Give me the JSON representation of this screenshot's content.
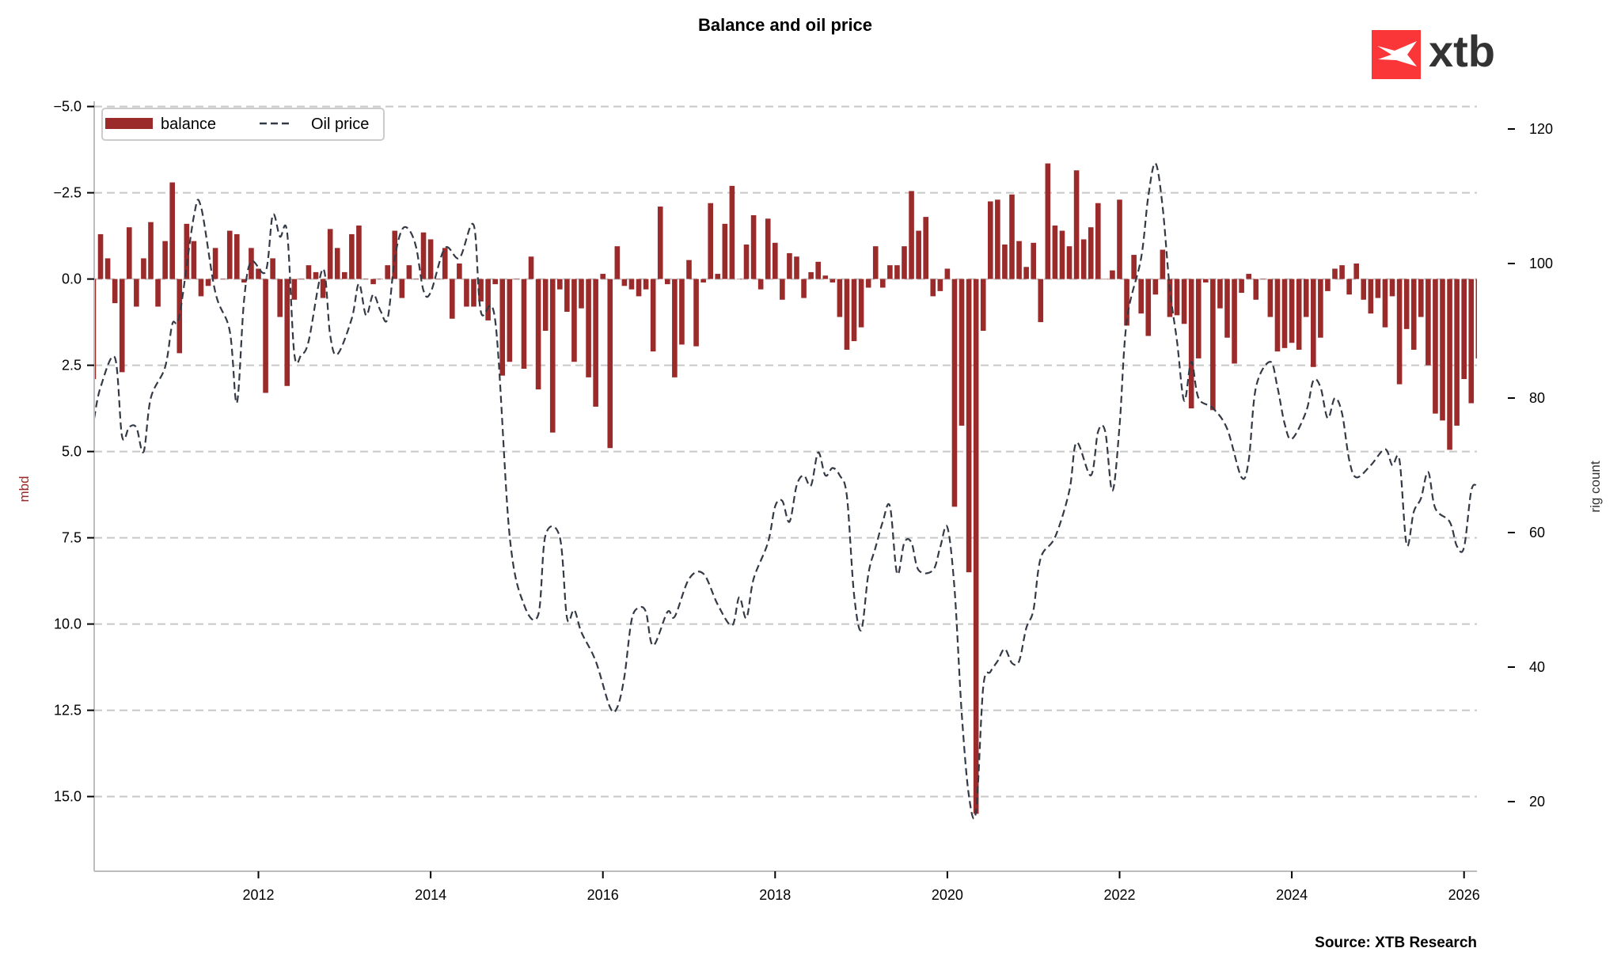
{
  "chart_data": {
    "type": "bar+line",
    "title": "Balance and oil price",
    "source": "Source: XTB Research",
    "logo_text": "xtb",
    "colors": {
      "balance": "#9b2a2a",
      "oil": "#343a45",
      "grid": "#c8c8c8",
      "logo": "#fb3638"
    },
    "left_axis": {
      "label": "mbd",
      "inverted": true,
      "ylim": [
        -5.2,
        17.2
      ],
      "ticks": [
        "-5.0",
        "-2.5",
        "0.0",
        "2.5",
        "5.0",
        "7.5",
        "10.0",
        "12.5",
        "15.0"
      ]
    },
    "right_axis": {
      "label": "rig count",
      "ylim": [
        9.7,
        124
      ],
      "ticks": [
        "20",
        "40",
        "60",
        "80",
        "100",
        "120"
      ]
    },
    "x_ticks": [
      "2012",
      "2014",
      "2016",
      "2018",
      "2020",
      "2022",
      "2024",
      "2026"
    ],
    "grid": "horizontal dashed (left axis)",
    "legend": {
      "placement": "top-left",
      "entries": [
        "balance",
        "Oil price"
      ]
    },
    "balance": {
      "name": "balance",
      "dates": [
        "2010-02",
        "2010-03",
        "2010-04",
        "2010-05",
        "2010-06",
        "2010-07",
        "2010-08",
        "2010-09",
        "2010-10",
        "2010-11",
        "2010-12",
        "2011-01",
        "2011-02",
        "2011-03",
        "2011-04",
        "2011-05",
        "2011-06",
        "2011-07",
        "2011-08",
        "2011-09",
        "2011-10",
        "2011-11",
        "2011-12",
        "2012-01",
        "2012-02",
        "2012-03",
        "2012-04",
        "2012-05",
        "2012-06",
        "2012-07",
        "2012-08",
        "2012-09",
        "2012-10",
        "2012-11",
        "2012-12",
        "2013-01",
        "2013-02",
        "2013-03",
        "2013-04",
        "2013-05",
        "2013-06",
        "2013-07",
        "2013-08",
        "2013-09",
        "2013-10",
        "2013-11",
        "2013-12",
        "2014-01",
        "2014-02",
        "2014-03",
        "2014-04",
        "2014-05",
        "2014-06",
        "2014-07",
        "2014-08",
        "2014-09",
        "2014-10",
        "2014-11",
        "2014-12",
        "2015-01",
        "2015-02",
        "2015-03",
        "2015-04",
        "2015-05",
        "2015-06",
        "2015-07",
        "2015-08",
        "2015-09",
        "2015-10",
        "2015-11",
        "2015-12",
        "2016-01",
        "2016-02",
        "2016-03",
        "2016-04",
        "2016-05",
        "2016-06",
        "2016-07",
        "2016-08",
        "2016-09",
        "2016-10",
        "2016-11",
        "2016-12",
        "2017-01",
        "2017-02",
        "2017-03",
        "2017-04",
        "2017-05",
        "2017-06",
        "2017-07",
        "2017-08",
        "2017-09",
        "2017-10",
        "2017-11",
        "2017-12",
        "2018-01",
        "2018-02",
        "2018-03",
        "2018-04",
        "2018-05",
        "2018-06",
        "2018-07",
        "2018-08",
        "2018-09",
        "2018-10",
        "2018-11",
        "2018-12",
        "2019-01",
        "2019-02",
        "2019-03",
        "2019-04",
        "2019-05",
        "2019-06",
        "2019-07",
        "2019-08",
        "2019-09",
        "2019-10",
        "2019-11",
        "2019-12",
        "2020-01",
        "2020-02",
        "2020-03",
        "2020-04",
        "2020-05",
        "2020-06",
        "2020-07",
        "2020-08",
        "2020-09",
        "2020-10",
        "2020-11",
        "2020-12",
        "2021-01",
        "2021-02",
        "2021-03",
        "2021-04",
        "2021-05",
        "2021-06",
        "2021-07",
        "2021-08",
        "2021-09",
        "2021-10",
        "2021-11",
        "2021-12",
        "2022-01",
        "2022-02",
        "2022-03",
        "2022-04",
        "2022-05",
        "2022-06",
        "2022-07",
        "2022-08",
        "2022-09",
        "2022-10",
        "2022-11",
        "2022-12",
        "2023-01",
        "2023-02",
        "2023-03",
        "2023-04",
        "2023-05",
        "2023-06",
        "2023-07",
        "2023-08",
        "2023-09",
        "2023-10",
        "2023-11",
        "2023-12",
        "2024-01",
        "2024-02",
        "2024-03",
        "2024-04",
        "2024-05",
        "2024-06",
        "2024-07",
        "2024-08",
        "2024-09",
        "2024-10",
        "2024-11",
        "2024-12",
        "2025-01",
        "2025-02",
        "2025-03",
        "2025-04",
        "2025-05",
        "2025-06",
        "2025-07",
        "2025-08",
        "2025-09",
        "2025-10",
        "2025-11",
        "2025-12",
        "2026-01",
        "2026-02",
        "2026-03"
      ],
      "values": [
        2.9,
        -1.3,
        -0.6,
        0.7,
        2.7,
        -1.5,
        0.8,
        -0.6,
        -1.65,
        0.8,
        -1.1,
        -2.8,
        2.15,
        -1.6,
        -1.1,
        0.5,
        0.2,
        -0.9,
        0,
        -1.4,
        -1.3,
        0.1,
        -0.9,
        -0.3,
        3.3,
        -0.6,
        1.1,
        3.1,
        0.6,
        0,
        -0.4,
        -0.2,
        0.55,
        -1.45,
        -0.9,
        -0.2,
        -1.3,
        -1.55,
        0,
        0.15,
        0,
        -0.4,
        -1.4,
        0.55,
        -0.4,
        0,
        -1.35,
        -1.15,
        0,
        -0.9,
        1.15,
        -0.45,
        0.8,
        0.8,
        0.65,
        1.2,
        0.15,
        2.8,
        2.4,
        0,
        2.6,
        -0.65,
        3.2,
        1.5,
        4.45,
        0.3,
        0.95,
        2.4,
        0.85,
        2.85,
        3.7,
        -0.15,
        4.9,
        -0.95,
        0.2,
        0.3,
        0.5,
        0.3,
        2.1,
        -2.1,
        0.15,
        2.85,
        1.9,
        -0.55,
        1.95,
        0.1,
        -2.2,
        -0.15,
        -1.6,
        -2.7,
        0,
        -1.0,
        -1.85,
        0.3,
        -1.75,
        -1.05,
        0.6,
        -0.75,
        -0.65,
        0.55,
        -0.2,
        -0.5,
        -0.1,
        0.1,
        1.1,
        2.05,
        1.8,
        1.4,
        0.25,
        -0.95,
        0.25,
        -0.4,
        -0.4,
        -0.95,
        -2.55,
        -1.4,
        -1.8,
        0.5,
        0.35,
        -0.3,
        6.6,
        4.25,
        8.5,
        15.5,
        1.5,
        -2.25,
        -2.3,
        -1.0,
        -2.45,
        -1.1,
        -0.35,
        -1.05,
        1.25,
        -3.35,
        -1.55,
        -1.4,
        -0.95,
        -3.15,
        -1.15,
        -1.5,
        -2.2,
        0,
        -0.25,
        -2.3,
        1.35,
        -0.7,
        1.0,
        1.65,
        0.45,
        -0.85,
        1.1,
        1.05,
        1.3,
        3.75,
        2.3,
        0.1,
        3.8,
        0.85,
        1.7,
        2.45,
        0.4,
        -0.15,
        0.6,
        0,
        1.1,
        2.1,
        2.0,
        1.85,
        2.05,
        1.1,
        2.55,
        1.7,
        0.35,
        -0.3,
        -0.4,
        0.45,
        -0.45,
        0.6,
        1.0,
        0.55,
        1.4,
        0.5,
        3.05,
        1.45,
        2.05,
        1.1,
        2.5,
        3.9,
        4.1,
        4.95,
        4.25,
        2.9,
        3.6,
        2.3
      ]
    },
    "oil": {
      "name": "Oil price",
      "dates": [
        "2010-02",
        "2010-03",
        "2010-05",
        "2010-06",
        "2010-07",
        "2010-08",
        "2010-09",
        "2010-10",
        "2010-12",
        "2011-01",
        "2011-02",
        "2011-04",
        "2011-05",
        "2011-07",
        "2011-09",
        "2011-10",
        "2011-11",
        "2011-12",
        "2012-02",
        "2012-03",
        "2012-04",
        "2012-05",
        "2012-06",
        "2012-07",
        "2012-08",
        "2012-10",
        "2012-11",
        "2012-12",
        "2013-02",
        "2013-03",
        "2013-04",
        "2013-05",
        "2013-06",
        "2013-07",
        "2013-08",
        "2013-09",
        "2013-10",
        "2013-11",
        "2013-12",
        "2014-01",
        "2014-03",
        "2014-05",
        "2014-07",
        "2014-08",
        "2014-10",
        "2014-12",
        "2015-02",
        "2015-04",
        "2015-05",
        "2015-07",
        "2015-08",
        "2015-09",
        "2015-10",
        "2015-12",
        "2016-02",
        "2016-03",
        "2016-04",
        "2016-05",
        "2016-06",
        "2016-07",
        "2016-08",
        "2016-10",
        "2016-11",
        "2017-01",
        "2017-03",
        "2017-05",
        "2017-07",
        "2017-08",
        "2017-09",
        "2017-10",
        "2017-12",
        "2018-01",
        "2018-02",
        "2018-03",
        "2018-04",
        "2018-05",
        "2018-06",
        "2018-07",
        "2018-08",
        "2018-09",
        "2018-10",
        "2018-11",
        "2018-12",
        "2019-01",
        "2019-02",
        "2019-03",
        "2019-04",
        "2019-05",
        "2019-06",
        "2019-07",
        "2019-08",
        "2019-09",
        "2019-11",
        "2019-12",
        "2020-01",
        "2020-02",
        "2020-03",
        "2020-04",
        "2020-05",
        "2020-06",
        "2020-07",
        "2020-08",
        "2020-09",
        "2020-10",
        "2020-11",
        "2020-12",
        "2021-01",
        "2021-02",
        "2021-04",
        "2021-06",
        "2021-07",
        "2021-09",
        "2021-10",
        "2021-11",
        "2021-12",
        "2022-01",
        "2022-02",
        "2022-04",
        "2022-05",
        "2022-06",
        "2022-07",
        "2022-08",
        "2022-09",
        "2022-10",
        "2022-11",
        "2022-12",
        "2023-02",
        "2023-04",
        "2023-06",
        "2023-07",
        "2023-08",
        "2023-10",
        "2023-11",
        "2023-12",
        "2024-01",
        "2024-03",
        "2024-04",
        "2024-05",
        "2024-06",
        "2024-07",
        "2024-08",
        "2024-09",
        "2024-10",
        "2024-12",
        "2025-02",
        "2025-03",
        "2025-04",
        "2025-05",
        "2025-06",
        "2025-07",
        "2025-08",
        "2025-09",
        "2025-11",
        "2025-12",
        "2026-01",
        "2026-02",
        "2026-03"
      ],
      "values": [
        77,
        81.6,
        86,
        74.3,
        75.7,
        75.6,
        72,
        80,
        84.6,
        91,
        92.3,
        107,
        108.4,
        95.7,
        90,
        79.3,
        94.6,
        100.3,
        98.8,
        107.2,
        104,
        104.6,
        86.6,
        86.5,
        88.5,
        99.2,
        89.3,
        86.5,
        91.8,
        97,
        92.3,
        95.4,
        93,
        91.8,
        100.8,
        105,
        105,
        102.3,
        96,
        95.7,
        102.3,
        100.8,
        105.7,
        92.8,
        91.5,
        59.6,
        49.3,
        47.8,
        59.6,
        59.3,
        47.3,
        48.5,
        45.2,
        40.9,
        34,
        34,
        38.6,
        47,
        48.8,
        48.2,
        43.2,
        48.2,
        47.5,
        53.1,
        53.9,
        49.3,
        46.2,
        50.4,
        47.3,
        53.1,
        58.5,
        63.9,
        64.7,
        61.6,
        67,
        68.5,
        67,
        71.9,
        68.5,
        69.6,
        68.5,
        65.4,
        50.8,
        45.5,
        53.9,
        57.8,
        61.6,
        63.9,
        53.9,
        58.5,
        58.5,
        54.4,
        54.4,
        57.8,
        60.8,
        51.6,
        33.2,
        20.9,
        18.6,
        37,
        39.3,
        40.9,
        42.7,
        40.6,
        40.9,
        45.8,
        48.5,
        56.2,
        59.3,
        66.2,
        73.4,
        68.5,
        75,
        75,
        66.2,
        75.9,
        91.5,
        100.8,
        110,
        114.9,
        108.4,
        96.2,
        88.5,
        79.6,
        85.4,
        80,
        78.5,
        75.4,
        68.2,
        70.8,
        81.6,
        85.4,
        81.6,
        76.2,
        73.9,
        78,
        82.6,
        81.6,
        77,
        80,
        77.7,
        70.8,
        68.2,
        70,
        72.4,
        70,
        70.8,
        58.2,
        63.1,
        65.1,
        69,
        63.6,
        61.6,
        58,
        57.8,
        66.2,
        67
      ]
    }
  }
}
